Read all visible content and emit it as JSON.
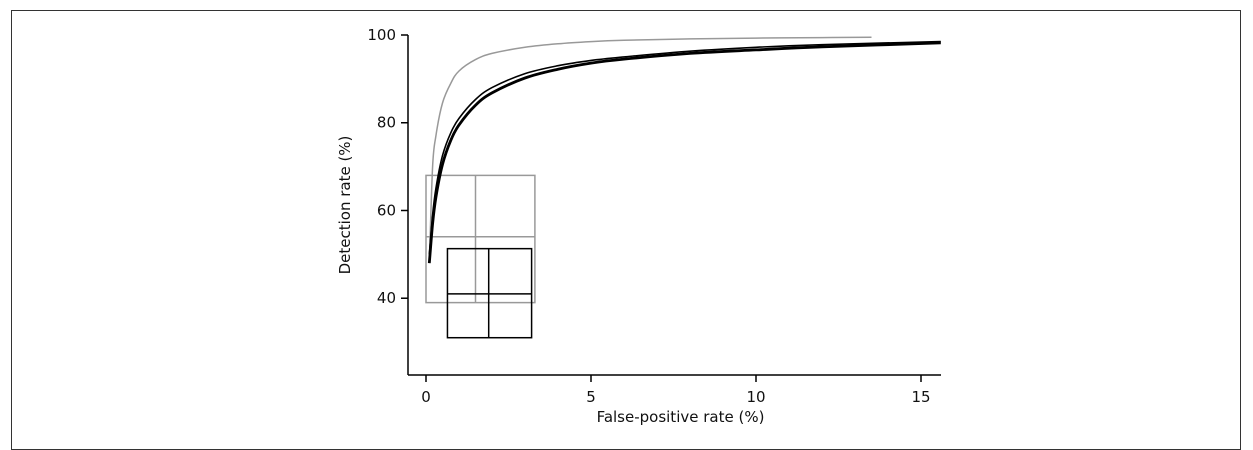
{
  "chart_data": {
    "type": "line",
    "title": "",
    "xlabel": "False-positive rate (%)",
    "ylabel": "Detection rate (%)",
    "xlim": [
      0,
      15.6
    ],
    "ylim": [
      22.5,
      100
    ],
    "x_ticks": [
      0,
      5,
      10,
      15
    ],
    "y_ticks": [
      40,
      60,
      80,
      100
    ],
    "grid": false,
    "legend": "none",
    "series": [
      {
        "color": "#999999",
        "stroke": "thin",
        "x": [
          0.1,
          0.2,
          0.3,
          0.5,
          0.75,
          1,
          1.5,
          2,
          3,
          4,
          5,
          6,
          8,
          10,
          12,
          13.5
        ],
        "y": [
          48,
          70,
          77,
          84.5,
          89,
          91.8,
          94.4,
          95.8,
          97.2,
          98,
          98.5,
          98.8,
          99.1,
          99.3,
          99.4,
          99.5
        ]
      },
      {
        "color": "#000000",
        "stroke": "medium",
        "x": [
          0.1,
          0.2,
          0.3,
          0.5,
          0.75,
          1,
          1.5,
          2,
          3,
          4,
          5,
          6,
          8,
          10,
          12,
          15.6
        ],
        "y": [
          50,
          59,
          65,
          72.5,
          77.7,
          81,
          85.3,
          88,
          91.2,
          93,
          94.2,
          95,
          96.3,
          97.2,
          97.8,
          98.5
        ]
      },
      {
        "color": "#000000",
        "stroke": "thick",
        "x": [
          0.1,
          0.2,
          0.3,
          0.5,
          0.75,
          1,
          1.5,
          2,
          3,
          4,
          5,
          6,
          8,
          10,
          12,
          15.6
        ],
        "y": [
          48,
          57,
          63,
          70.5,
          76,
          79.5,
          84,
          86.8,
          90.2,
          92.2,
          93.6,
          94.5,
          95.8,
          96.6,
          97.3,
          98.2
        ]
      }
    ],
    "boxes": [
      {
        "color": "#999999",
        "x_range": [
          0,
          3.3
        ],
        "y_range": [
          39,
          68
        ],
        "center": [
          1.5,
          54
        ]
      },
      {
        "color": "#000000",
        "x_range": [
          0.65,
          3.2
        ],
        "y_range": [
          31,
          51.3
        ],
        "center": [
          1.9,
          41
        ]
      }
    ]
  }
}
